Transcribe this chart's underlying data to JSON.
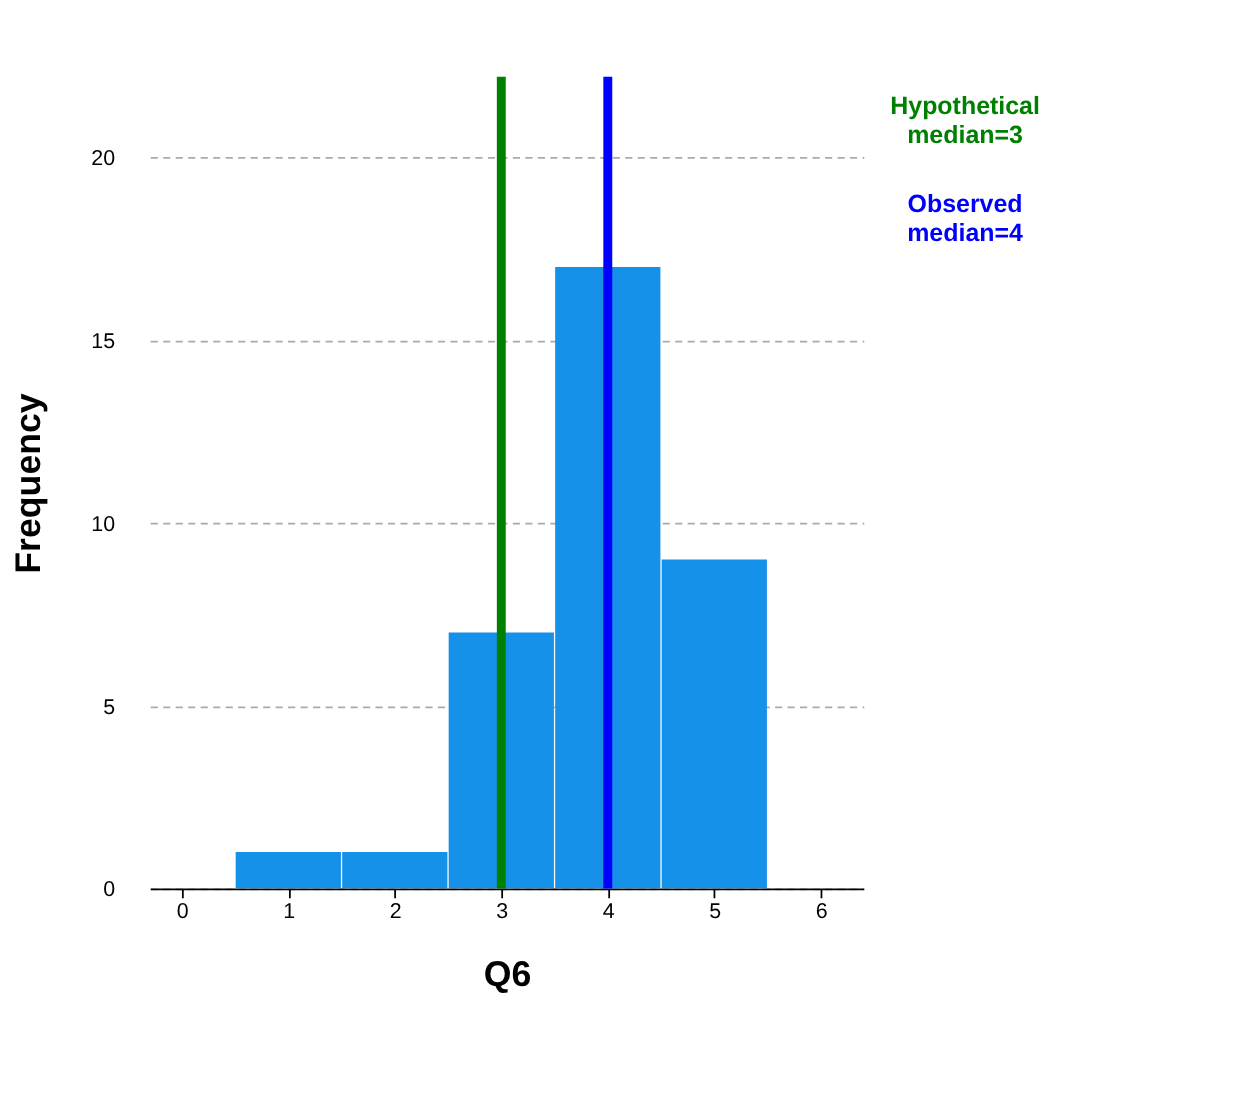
{
  "chart_data": {
    "type": "bar",
    "xlabel": "Q6",
    "ylabel": "Frequency",
    "x": [
      0,
      1,
      2,
      3,
      4,
      5,
      6
    ],
    "values": [
      0,
      1,
      1,
      7,
      17,
      9,
      0
    ],
    "color": "#1591ea",
    "xlim": [
      -0.3,
      6.4
    ],
    "xticks": [
      0,
      1,
      2,
      3,
      4,
      5,
      6
    ],
    "ylim": [
      0,
      22.2
    ],
    "yticks": [
      0,
      5,
      10,
      15,
      20
    ],
    "grid": "y",
    "ref_lines": [
      {
        "axis": "x",
        "value": 3,
        "label": "Hypothetical\nmedian=3",
        "color": "#008000"
      },
      {
        "axis": "x",
        "value": 4,
        "label": "Observed\nmedian=4",
        "color": "#0000ff"
      }
    ]
  }
}
